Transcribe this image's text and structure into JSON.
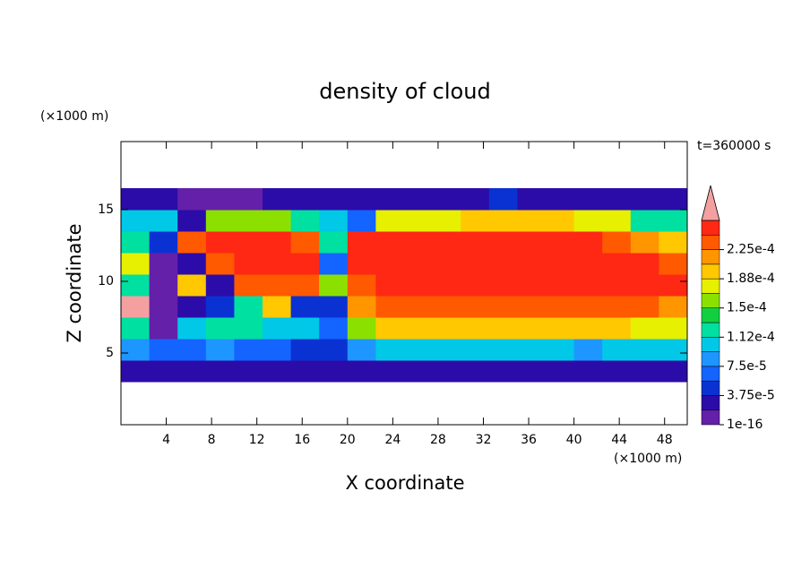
{
  "chart_data": {
    "type": "contour",
    "title": "density of cloud",
    "annotation": "t=360000 s",
    "x_label": "X coordinate",
    "y_label": "Z coordinate",
    "x_unit": "(×1000 m)",
    "y_unit": "(×1000 m)",
    "xlim": [
      0,
      50
    ],
    "ylim": [
      0,
      19.75
    ],
    "xticks": [
      4,
      8,
      12,
      16,
      20,
      24,
      28,
      32,
      36,
      40,
      44,
      48
    ],
    "yticks": [
      5,
      10,
      15
    ],
    "x_bins": [
      0,
      2.5,
      5,
      7.5,
      10,
      12.5,
      15,
      17.5,
      20,
      22.5,
      25,
      27.5,
      30,
      32.5,
      35,
      37.5,
      40,
      42.5,
      45,
      47.5,
      50
    ],
    "y_bins": [
      3,
      4.5,
      6,
      7.5,
      9,
      10.5,
      12,
      13.5,
      15,
      16.5
    ],
    "values": [
      [
        2e-05,
        2e-05,
        2e-05,
        2e-05,
        2e-05,
        3e-05,
        2e-05,
        2e-05,
        2e-05,
        2e-05,
        2e-05,
        2e-05,
        2e-05,
        2e-05,
        2e-05,
        2e-05,
        2e-05,
        2e-05,
        2e-05,
        2e-05
      ],
      [
        8e-05,
        6e-05,
        7e-05,
        8e-05,
        7e-05,
        6e-05,
        5e-05,
        5e-05,
        8e-05,
        0.000105,
        0.00011,
        0.00011,
        0.00011,
        0.00011,
        0.00011,
        0.000105,
        9e-05,
        0.00011,
        0.00011,
        0.00011
      ],
      [
        0.00012,
        1e-05,
        0.00011,
        0.00012,
        0.00013,
        0.0001,
        0.00011,
        6e-05,
        0.00016,
        0.00019,
        0.00019,
        0.00019,
        0.00019,
        0.00019,
        0.00019,
        0.00019,
        0.00019,
        0.00019,
        0.000185,
        0.00018
      ],
      [
        0.00027,
        1e-05,
        3e-05,
        4e-05,
        0.00012,
        0.0002,
        5e-05,
        5e-05,
        0.00022,
        0.00023,
        0.00023,
        0.00023,
        0.00023,
        0.00023,
        0.00023,
        0.00023,
        0.00023,
        0.00023,
        0.00023,
        0.00022
      ],
      [
        0.00013,
        1e-05,
        0.0002,
        2e-05,
        0.00024,
        0.00024,
        0.00024,
        0.00015,
        0.00024,
        0.000245,
        0.000245,
        0.000245,
        0.000245,
        0.000245,
        0.000245,
        0.000245,
        0.000245,
        0.000245,
        0.000245,
        0.000245
      ],
      [
        0.00018,
        1e-05,
        2e-05,
        0.00024,
        0.000245,
        0.000245,
        0.000245,
        6e-05,
        0.000245,
        0.000245,
        0.000245,
        0.000245,
        0.000245,
        0.000245,
        0.000245,
        0.000245,
        0.000245,
        0.000245,
        0.000245,
        0.00024
      ],
      [
        0.00013,
        5e-05,
        0.00024,
        0.000245,
        0.000245,
        0.000245,
        0.00024,
        0.00012,
        0.000245,
        0.000245,
        0.000245,
        0.000245,
        0.000245,
        0.000245,
        0.000245,
        0.000245,
        0.000245,
        0.00024,
        0.00022,
        0.00019
      ],
      [
        0.0001,
        0.00011,
        3e-05,
        0.00015,
        0.00016,
        0.00015,
        0.00013,
        0.00011,
        6e-05,
        0.00018,
        0.000185,
        0.000185,
        0.00019,
        0.00019,
        0.00019,
        0.00019,
        0.000185,
        0.00018,
        0.00013,
        0.00012
      ],
      [
        2e-05,
        2e-05,
        1.5e-05,
        1.5e-05,
        1.5e-05,
        2e-05,
        3e-05,
        2e-05,
        3e-05,
        2e-05,
        2e-05,
        2e-05,
        3e-05,
        5e-05,
        3e-05,
        2e-05,
        2e-05,
        2e-05,
        2e-05,
        2e-05
      ]
    ],
    "levels": [
      1e-16,
      1.875e-05,
      3.75e-05,
      5.625e-05,
      7.5e-05,
      9.375e-05,
      0.0001125,
      0.00013125,
      0.00015,
      0.00016875,
      0.0001875,
      0.00020625,
      0.000225,
      0.00024375,
      0.0002625
    ],
    "colors": [
      "#6420a8",
      "#2c0ca8",
      "#0a32d2",
      "#1464ff",
      "#1e96ff",
      "#00c8e6",
      "#00e0a0",
      "#10d040",
      "#8ce000",
      "#e6f000",
      "#ffc800",
      "#ff9600",
      "#ff5a00",
      "#ff2814",
      "#f4a0a0"
    ],
    "colorbar_ticks": [
      1e-16,
      {
        "value": 3.75e-05,
        "label": "3.75e-5"
      },
      {
        "value": 7.5e-05,
        "label": "7.5e-5"
      },
      {
        "value": 0.0001125,
        "label": "1.12e-4"
      },
      {
        "value": 0.00015,
        "label": "1.5e-4"
      },
      {
        "value": 0.0001875,
        "label": "1.88e-4"
      },
      {
        "value": 0.000225,
        "label": "2.25e-4"
      }
    ]
  }
}
